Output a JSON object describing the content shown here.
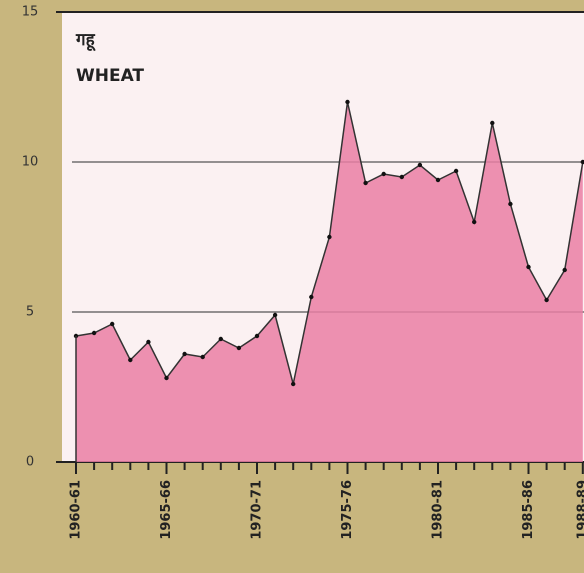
{
  "chart_data": {
    "type": "area",
    "title": "गहू",
    "subtitle": "WHEAT",
    "categories": [
      "1960-61",
      null,
      null,
      null,
      null,
      "1965-66",
      null,
      null,
      null,
      null,
      "1970-71",
      null,
      null,
      null,
      null,
      "1975-76",
      null,
      null,
      null,
      null,
      "1980-81",
      null,
      null,
      null,
      null,
      "1985-86",
      null,
      null,
      "1988-89"
    ],
    "values": [
      4.2,
      4.3,
      4.6,
      3.4,
      4.0,
      2.8,
      3.6,
      3.5,
      4.1,
      3.8,
      4.2,
      4.9,
      2.6,
      5.5,
      7.5,
      12.0,
      9.3,
      9.6,
      9.5,
      9.9,
      9.4,
      9.7,
      8.0,
      11.3,
      8.6,
      6.5,
      5.4,
      6.4,
      10.0
    ],
    "color": "#ea7fa4",
    "ylim": [
      0,
      15
    ],
    "yticks": [
      0,
      5,
      10,
      15
    ],
    "grid": true
  }
}
